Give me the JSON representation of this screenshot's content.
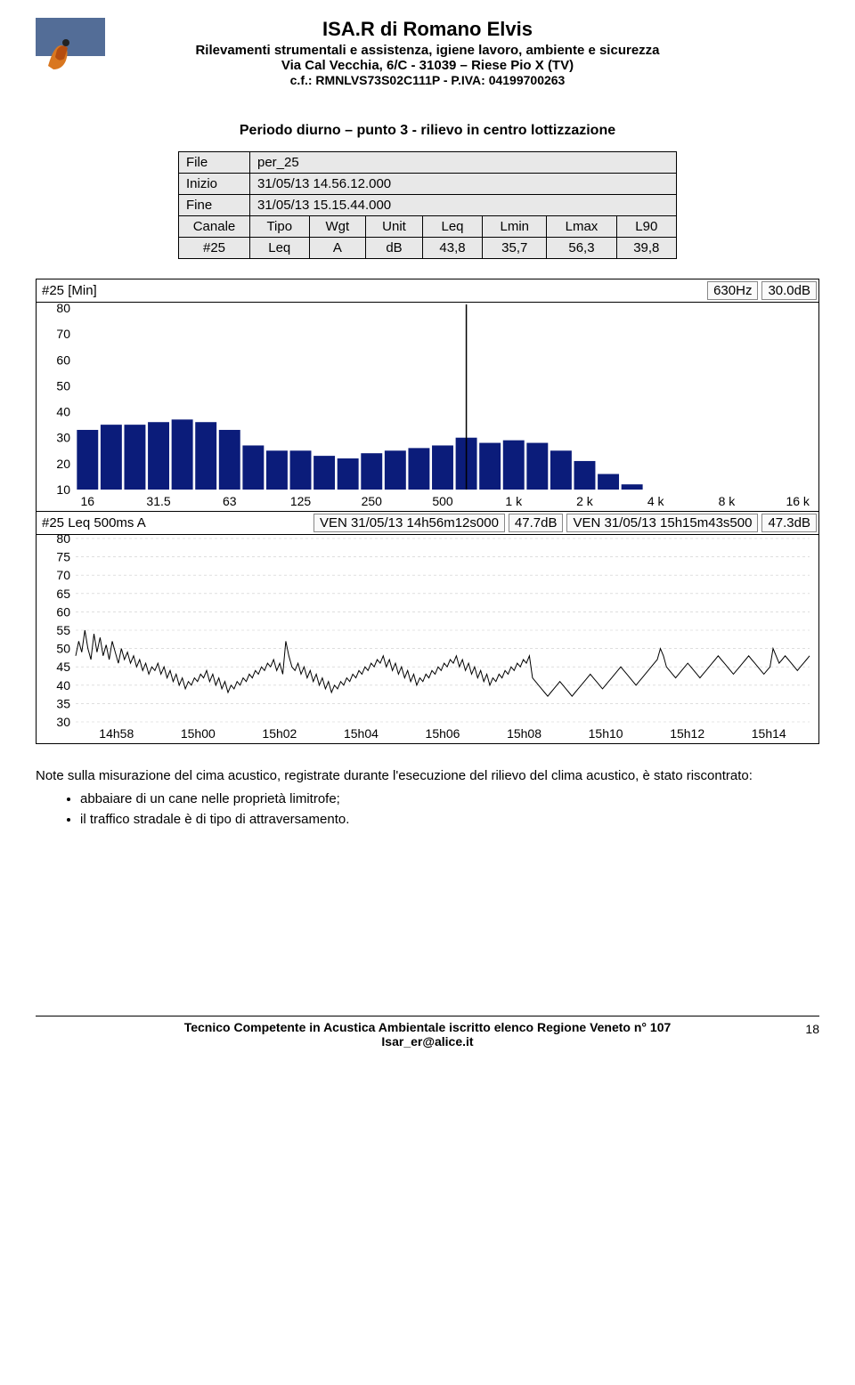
{
  "header": {
    "title": "ISA.R di Romano Elvis",
    "subtitle": "Rilevamenti strumentali e assistenza, igiene lavoro, ambiente e sicurezza",
    "address": "Via Cal Vecchia, 6/C - 31039 – Riese Pio X (TV)",
    "codes": "c.f.: RMNLVS73S02C111P - P.IVA: 04199700263"
  },
  "section_title": "Periodo diurno – punto 3 - rilievo in centro lottizzazione",
  "meta": {
    "file_label": "File",
    "file_value": "per_25",
    "start_label": "Inizio",
    "start_value": "31/05/13 14.56.12.000",
    "end_label": "Fine",
    "end_value": "31/05/13 15.15.44.000",
    "col_canale": "Canale",
    "col_tipo": "Tipo",
    "col_wgt": "Wgt",
    "col_unit": "Unit",
    "col_leq": "Leq",
    "col_lmin": "Lmin",
    "col_lmax": "Lmax",
    "col_l90": "L90",
    "row_canale": "#25",
    "row_tipo": "Leq",
    "row_wgt": "A",
    "row_unit": "dB",
    "row_leq": "43,8",
    "row_lmin": "35,7",
    "row_lmax": "56,3",
    "row_l90": "39,8"
  },
  "spectrum": {
    "type": "bar",
    "title_left": "#25 [Min]",
    "title_freq": "630Hz",
    "title_db": "30.0dB",
    "ylim": [
      10,
      80
    ],
    "ytick_step": 10,
    "xlabels": [
      "16",
      "31.5",
      "63",
      "125",
      "250",
      "500",
      "1 k",
      "2 k",
      "4 k",
      "8 k",
      "16 k"
    ],
    "bar_freqs": [
      "16",
      "20",
      "25",
      "31.5",
      "40",
      "50",
      "63",
      "80",
      "100",
      "125",
      "160",
      "200",
      "250",
      "315",
      "400",
      "500",
      "630",
      "800",
      "1k",
      "1.25k",
      "1.6k",
      "2k",
      "2.5k",
      "3.15k",
      "4k",
      "5k",
      "6.3k",
      "8k",
      "10k",
      "12.5k",
      "16k"
    ],
    "values": [
      33,
      35,
      35,
      36,
      37,
      36,
      33,
      27,
      25,
      25,
      23,
      22,
      24,
      25,
      26,
      27,
      30,
      28,
      29,
      28,
      25,
      21,
      16,
      12,
      10,
      10,
      10,
      10,
      10,
      10,
      10
    ],
    "bar_color": "#0b1c7a",
    "cursor_band_index": 16,
    "xlabel_indices": [
      0,
      3,
      6,
      9,
      12,
      15,
      18,
      21,
      24,
      27,
      30
    ],
    "background": "#ffffff"
  },
  "timehistory": {
    "type": "line",
    "title_left": "#25 Leq 500ms A",
    "stamp1_label": "VEN 31/05/13 14h56m12s000",
    "stamp1_db": "47.7dB",
    "stamp2_label": "VEN 31/05/13 15h15m43s500",
    "stamp2_db": "47.3dB",
    "ylim": [
      30,
      80
    ],
    "ytick_step": 5,
    "xlabels": [
      "14h58",
      "15h00",
      "15h02",
      "15h04",
      "15h06",
      "15h08",
      "15h10",
      "15h12",
      "15h14"
    ],
    "line_color": "#000000",
    "grid_color": "#cccccc",
    "background": "#ffffff",
    "series": [
      48,
      52,
      49,
      55,
      50,
      47,
      54,
      49,
      53,
      48,
      51,
      47,
      52,
      49,
      46,
      50,
      47,
      49,
      46,
      48,
      45,
      47,
      44,
      46,
      43,
      45,
      44,
      46,
      43,
      45,
      42,
      44,
      41,
      43,
      40,
      42,
      39,
      41,
      40,
      42,
      41,
      43,
      42,
      44,
      41,
      43,
      40,
      42,
      39,
      41,
      38,
      40,
      39,
      41,
      40,
      42,
      41,
      43,
      42,
      44,
      43,
      45,
      44,
      46,
      45,
      47,
      44,
      46,
      43,
      52,
      48,
      45,
      44,
      46,
      43,
      45,
      42,
      44,
      41,
      43,
      40,
      42,
      39,
      41,
      38,
      40,
      39,
      41,
      40,
      42,
      41,
      43,
      42,
      44,
      43,
      45,
      44,
      46,
      45,
      47,
      46,
      48,
      45,
      47,
      44,
      46,
      43,
      45,
      42,
      44,
      41,
      43,
      40,
      42,
      41,
      43,
      42,
      44,
      43,
      45,
      44,
      46,
      45,
      47,
      46,
      48,
      45,
      47,
      44,
      46,
      43,
      45,
      42,
      44,
      41,
      43,
      40,
      42,
      41,
      43,
      42,
      44,
      43,
      45,
      44,
      46,
      45,
      47,
      46,
      48,
      42,
      41,
      40,
      39,
      38,
      37,
      38,
      39,
      40,
      41,
      40,
      39,
      38,
      37,
      38,
      39,
      40,
      41,
      42,
      43,
      42,
      41,
      40,
      39,
      40,
      41,
      42,
      43,
      44,
      45,
      44,
      43,
      42,
      41,
      40,
      41,
      42,
      43,
      44,
      45,
      46,
      47,
      50,
      48,
      45,
      44,
      43,
      42,
      43,
      44,
      45,
      46,
      45,
      44,
      43,
      42,
      43,
      44,
      45,
      46,
      47,
      48,
      47,
      46,
      45,
      44,
      43,
      44,
      45,
      46,
      47,
      48,
      47,
      46,
      45,
      44,
      43,
      44,
      45,
      50,
      48,
      46,
      47,
      48,
      47,
      46,
      45,
      44,
      45,
      46,
      47,
      48
    ]
  },
  "notes": {
    "intro": "Note sulla misurazione del cima acustico, registrate durante l'esecuzione del rilievo del clima acustico, è stato riscontrato:",
    "b1": "abbaiare di un cane nelle proprietà limitrofe;",
    "b2": "il traffico stradale è di tipo di attraversamento."
  },
  "footer": {
    "line1": "Tecnico Competente in Acustica Ambientale iscritto elenco Regione Veneto n° 107",
    "line2": "Isar_er@alice.it",
    "page": "18"
  }
}
